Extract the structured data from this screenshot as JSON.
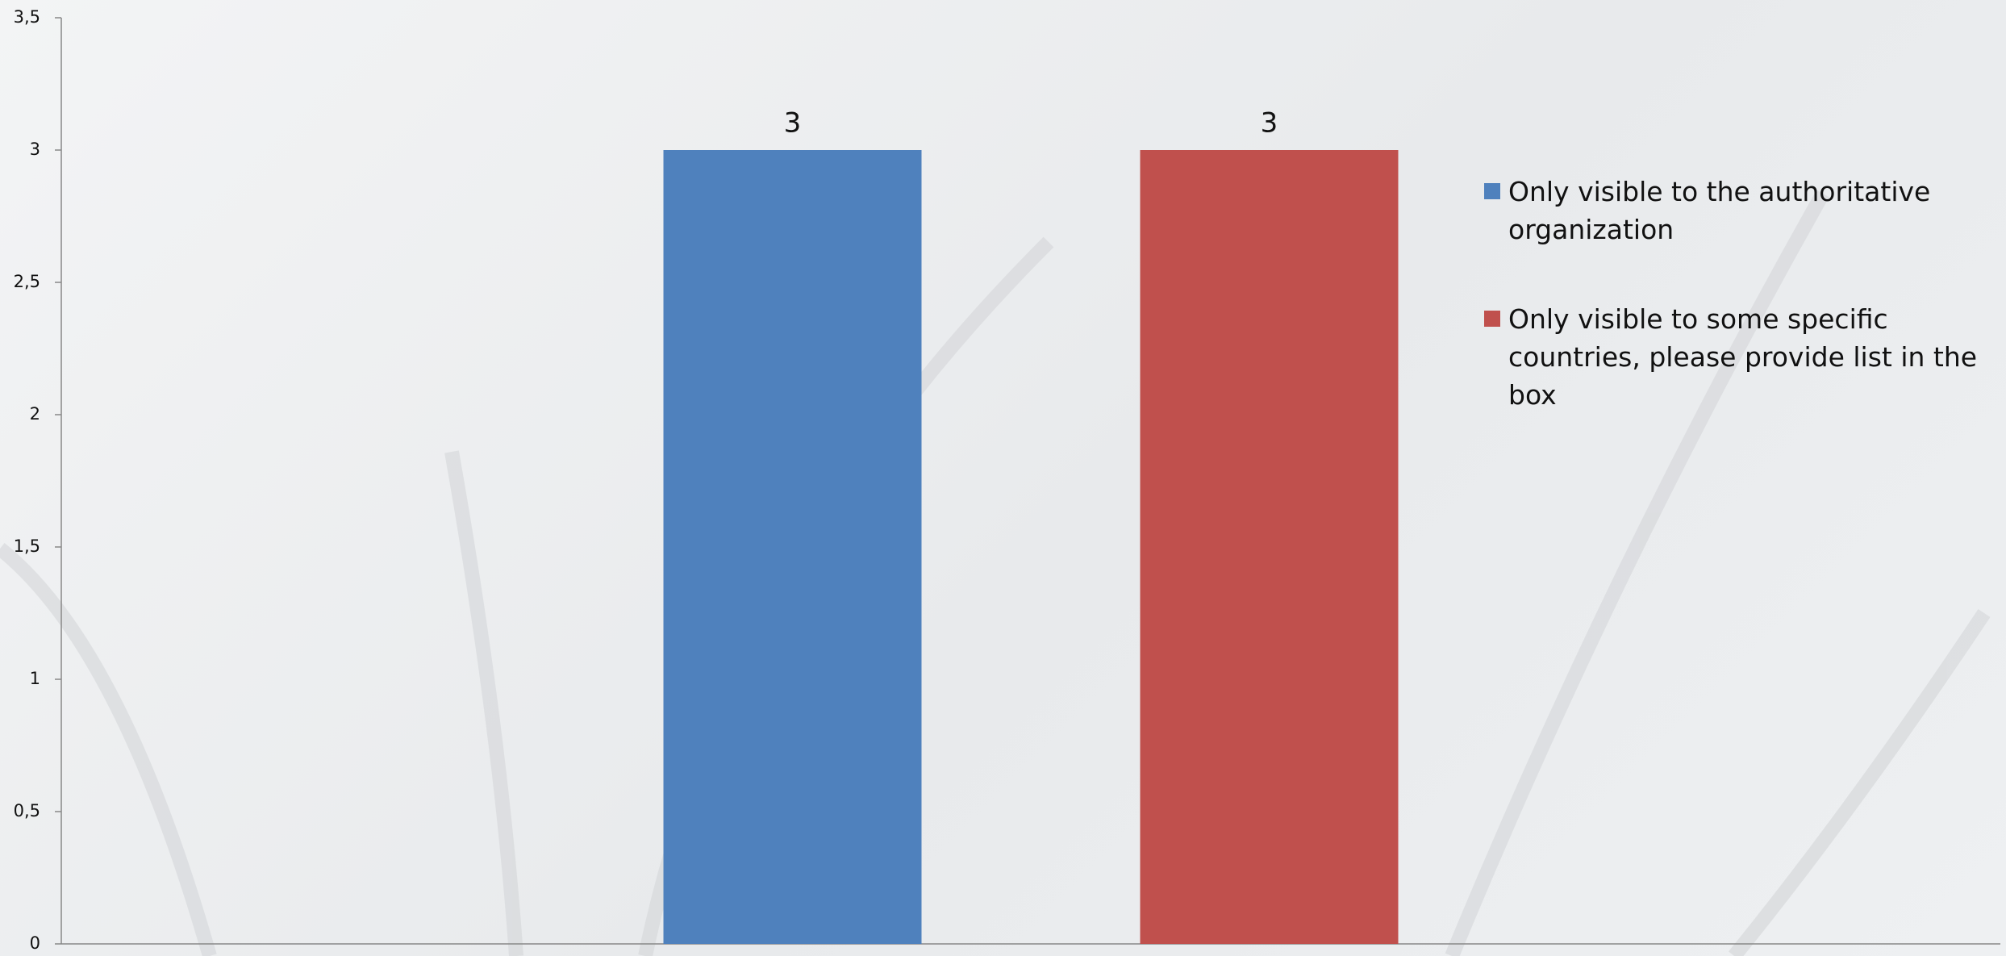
{
  "chart_data": {
    "type": "bar",
    "categories": [
      null
    ],
    "series": [
      {
        "name": "Only visible to the authoritative organization",
        "color": "#4f81bd",
        "values": [
          3
        ]
      },
      {
        "name": "Only visible to some specific countries, please provide list in the box",
        "color": "#c0504d",
        "values": [
          3
        ]
      }
    ],
    "ylim": [
      0,
      3.5
    ],
    "yticks": [
      0,
      {
        "value": 0.5,
        "label": "0,5"
      },
      1,
      {
        "value": 1.5,
        "label": "1,5"
      },
      2,
      {
        "value": 2.5,
        "label": "2,5"
      },
      3,
      {
        "value": 3.5,
        "label": "3,5"
      }
    ],
    "legend": "right"
  }
}
